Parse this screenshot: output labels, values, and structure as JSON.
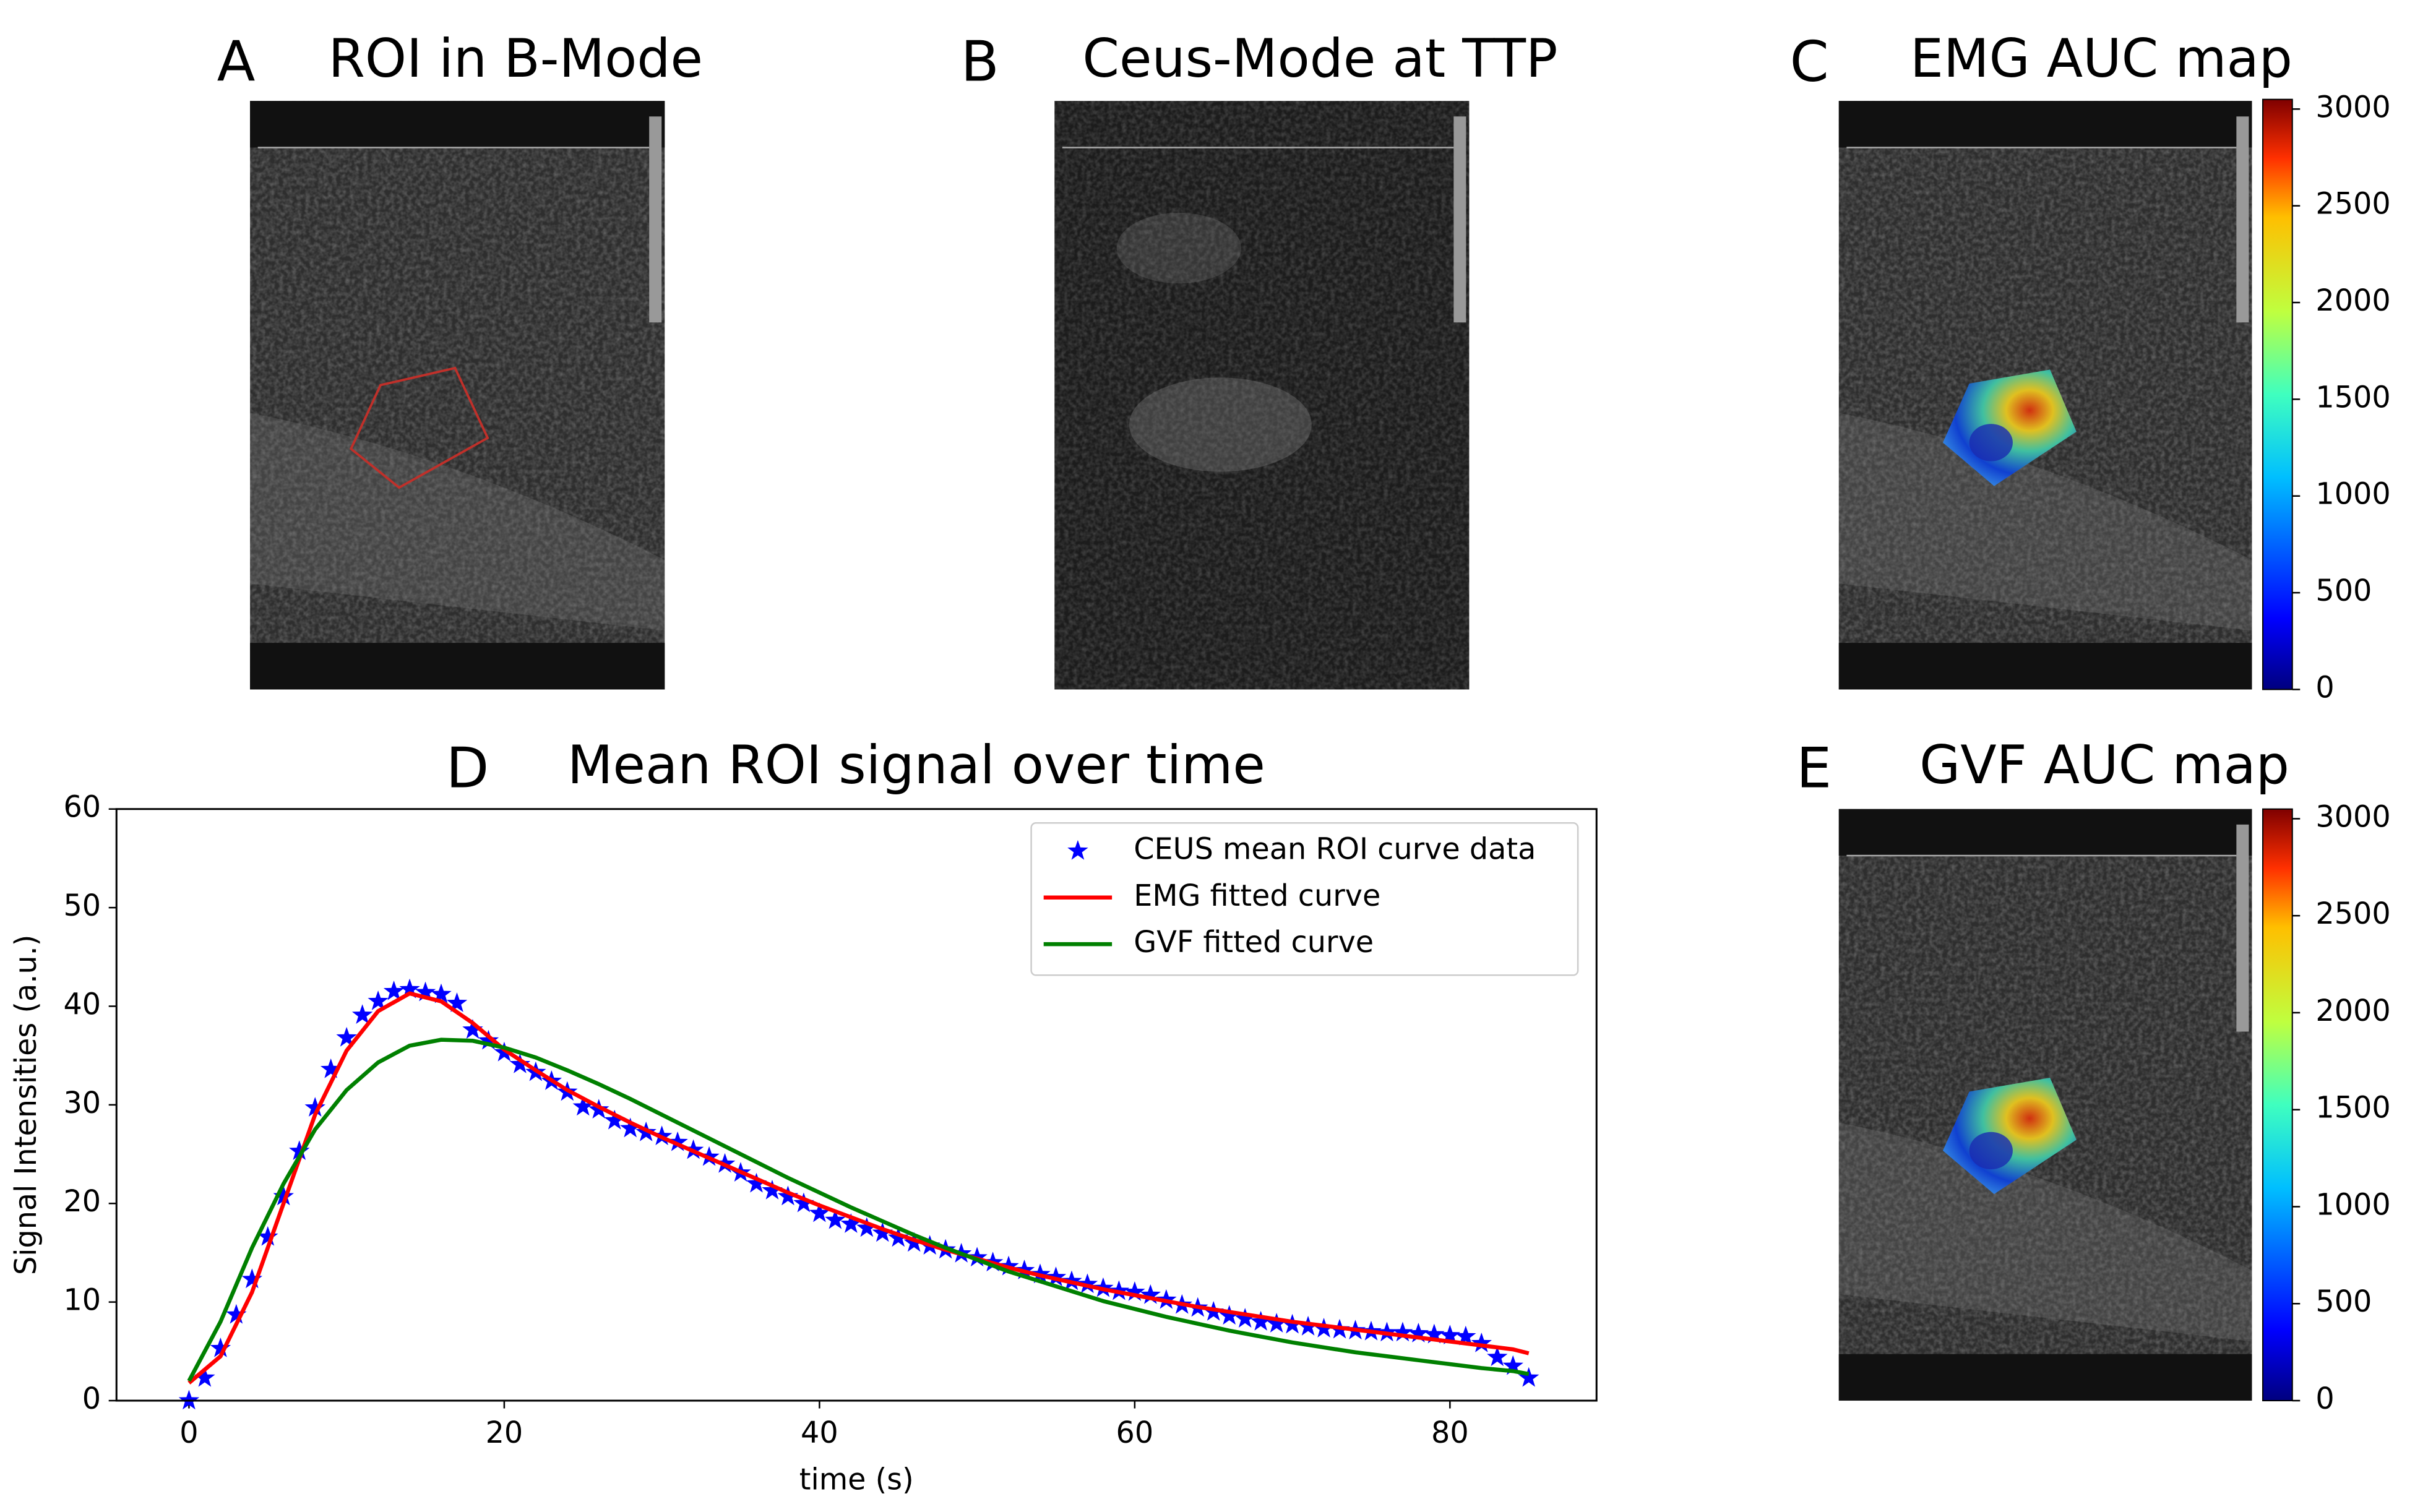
{
  "chart_data": [
    {
      "type": "image",
      "label": "A",
      "title": "ROI in B-Mode",
      "overlay": "roi-outline"
    },
    {
      "type": "image",
      "label": "B",
      "title": "Ceus-Mode at TTP",
      "overlay": "contrast"
    },
    {
      "type": "image",
      "label": "C",
      "title": "EMG AUC map",
      "overlay": "auc-heatmap",
      "colorbar": {
        "colormap": "jet",
        "ylim": [
          0,
          3050
        ],
        "yticks": [
          0,
          500,
          1000,
          1500,
          2000,
          2500,
          3000
        ]
      }
    },
    {
      "type": "line",
      "label": "D",
      "title": "Mean ROI signal over time",
      "x_label": "time (s)",
      "y_label": "Signal Intensities (a.u.)",
      "xlim": [
        -4.6,
        89.3
      ],
      "ylim": [
        0,
        60
      ],
      "xticks": [
        0,
        20,
        40,
        60,
        80
      ],
      "yticks": [
        0,
        10,
        20,
        30,
        40,
        50,
        60
      ],
      "legend": "upper right",
      "series": [
        {
          "name": "CEUS mean ROI curve data",
          "color": "#0000ff",
          "mode": "markers",
          "x": [
            0,
            1,
            2,
            3,
            4,
            5,
            6,
            7,
            8,
            9,
            10,
            11,
            12,
            13,
            14,
            15,
            16,
            17,
            18,
            19,
            20,
            21,
            22,
            23,
            24,
            25,
            26,
            27,
            28,
            29,
            30,
            31,
            32,
            33,
            34,
            35,
            36,
            37,
            38,
            39,
            40,
            41,
            42,
            43,
            44,
            45,
            46,
            47,
            48,
            49,
            50,
            51,
            52,
            53,
            54,
            55,
            56,
            57,
            58,
            59,
            60,
            61,
            62,
            63,
            64,
            65,
            66,
            67,
            68,
            69,
            70,
            71,
            72,
            73,
            74,
            75,
            76,
            77,
            78,
            79,
            80,
            81,
            82,
            83,
            84,
            85
          ],
          "values": [
            0,
            2.3,
            5.3,
            8.7,
            12.3,
            16.6,
            20.7,
            25.3,
            29.7,
            33.6,
            36.8,
            39.1,
            40.5,
            41.5,
            41.7,
            41.4,
            41.2,
            40.3,
            37.6,
            36.5,
            35.3,
            34.1,
            33.3,
            32.4,
            31.3,
            29.8,
            29.5,
            28.4,
            27.6,
            27.2,
            26.8,
            26.2,
            25.4,
            24.7,
            24.0,
            23.1,
            22.0,
            21.3,
            20.7,
            20.0,
            19.0,
            18.3,
            17.9,
            17.5,
            17.0,
            16.5,
            16.0,
            15.7,
            15.3,
            14.9,
            14.5,
            14.0,
            13.6,
            13.2,
            12.8,
            12.5,
            12.1,
            11.8,
            11.4,
            11.1,
            11.0,
            10.7,
            10.2,
            9.7,
            9.4,
            9.0,
            8.6,
            8.3,
            8.0,
            7.8,
            7.7,
            7.5,
            7.3,
            7.2,
            7.1,
            7.0,
            6.9,
            6.9,
            6.8,
            6.7,
            6.6,
            6.5,
            5.8,
            4.4,
            3.5,
            2.3
          ]
        },
        {
          "name": "EMG fitted curve",
          "color": "#ff0000",
          "mode": "line",
          "x": [
            0,
            2,
            4,
            6,
            8,
            10,
            12,
            14,
            16,
            18,
            20,
            22,
            24,
            26,
            28,
            30,
            32,
            34,
            36,
            38,
            40,
            42,
            44,
            46,
            48,
            50,
            52,
            54,
            56,
            58,
            60,
            62,
            64,
            66,
            68,
            70,
            72,
            74,
            76,
            78,
            80,
            82,
            84,
            85
          ],
          "values": [
            1.8,
            4.5,
            11,
            20,
            29,
            35.5,
            39.5,
            41.3,
            40.5,
            38.3,
            35.6,
            33.5,
            31.5,
            29.8,
            28.2,
            26.7,
            25.3,
            23.9,
            22.5,
            21.1,
            19.8,
            18.6,
            17.4,
            16.3,
            15.3,
            14.4,
            13.5,
            12.7,
            12.0,
            11.3,
            10.7,
            10.1,
            9.5,
            9.0,
            8.5,
            8.0,
            7.6,
            7.2,
            6.8,
            6.4,
            6.0,
            5.6,
            5.2,
            4.8
          ]
        },
        {
          "name": "GVF fitted curve",
          "color": "#008000",
          "mode": "line",
          "x": [
            0,
            2,
            4,
            6,
            8,
            10,
            12,
            14,
            16,
            18,
            20,
            22,
            24,
            26,
            28,
            30,
            32,
            34,
            36,
            38,
            40,
            42,
            44,
            46,
            48,
            50,
            52,
            54,
            56,
            58,
            60,
            62,
            64,
            66,
            68,
            70,
            72,
            74,
            76,
            78,
            80,
            82,
            84,
            85
          ],
          "values": [
            2,
            8,
            15.5,
            22,
            27.5,
            31.5,
            34.3,
            36,
            36.6,
            36.5,
            35.8,
            34.8,
            33.5,
            32.1,
            30.6,
            29,
            27.4,
            25.8,
            24.2,
            22.6,
            21.1,
            19.6,
            18.2,
            16.8,
            15.5,
            14.3,
            13.1,
            12.1,
            11.1,
            10.1,
            9.3,
            8.5,
            7.8,
            7.1,
            6.5,
            5.9,
            5.4,
            4.9,
            4.5,
            4.1,
            3.7,
            3.3,
            3.0,
            2.7
          ]
        }
      ]
    },
    {
      "type": "image",
      "label": "E",
      "title": "GVF AUC map",
      "overlay": "auc-heatmap",
      "colorbar": {
        "colormap": "jet",
        "ylim": [
          0,
          3050
        ],
        "yticks": [
          0,
          500,
          1000,
          1500,
          2000,
          2500,
          3000
        ]
      }
    }
  ]
}
